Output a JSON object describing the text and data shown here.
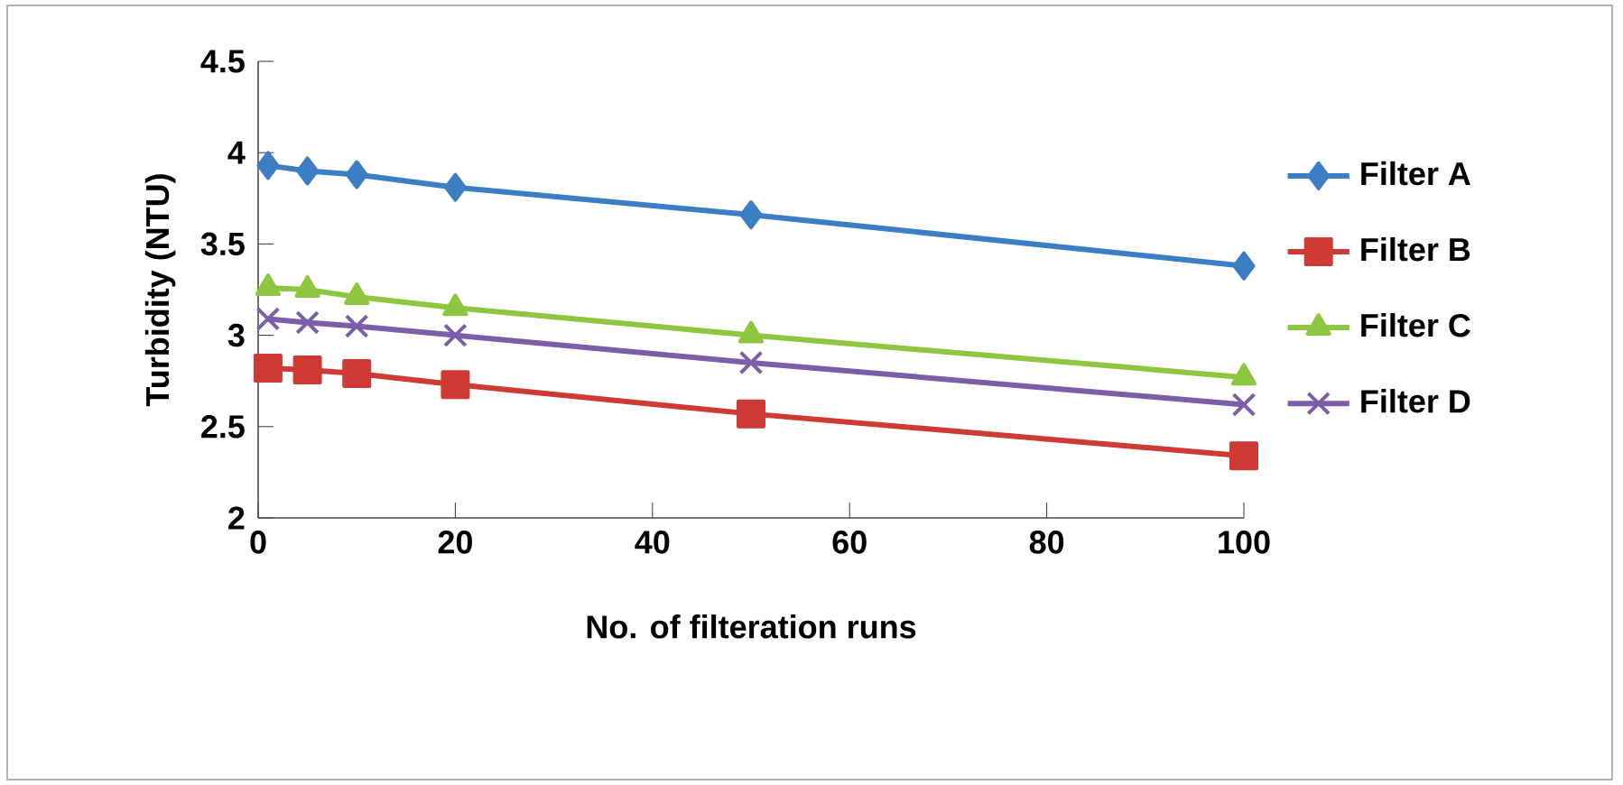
{
  "chart_data": {
    "type": "line",
    "xlabel": "No. of filteration runs",
    "ylabel": "Turbidity (NTU)",
    "xlim": [
      0,
      100
    ],
    "ylim": [
      2,
      4.5
    ],
    "xticks": [
      0,
      20,
      40,
      60,
      80,
      100
    ],
    "yticks": [
      2,
      2.5,
      3,
      3.5,
      4,
      4.5
    ],
    "grid": false,
    "legend": "right",
    "line_style": "solid",
    "x": [
      1,
      5,
      10,
      20,
      50,
      100
    ],
    "series": [
      {
        "name": "Filter A",
        "color": "#3c7ec4",
        "marker": "diamond",
        "values": [
          3.93,
          3.9,
          3.88,
          3.81,
          3.66,
          3.38
        ]
      },
      {
        "name": "Filter B",
        "color": "#cf3a35",
        "marker": "square",
        "values": [
          2.82,
          2.81,
          2.79,
          2.73,
          2.57,
          2.34
        ]
      },
      {
        "name": "Filter C",
        "color": "#8dc63f",
        "marker": "triangle",
        "values": [
          3.26,
          3.25,
          3.21,
          3.15,
          3.0,
          2.77
        ]
      },
      {
        "name": "Filter D",
        "color": "#7b5ea7",
        "marker": "cross",
        "values": [
          3.09,
          3.07,
          3.05,
          3.0,
          2.85,
          2.62
        ]
      }
    ]
  }
}
